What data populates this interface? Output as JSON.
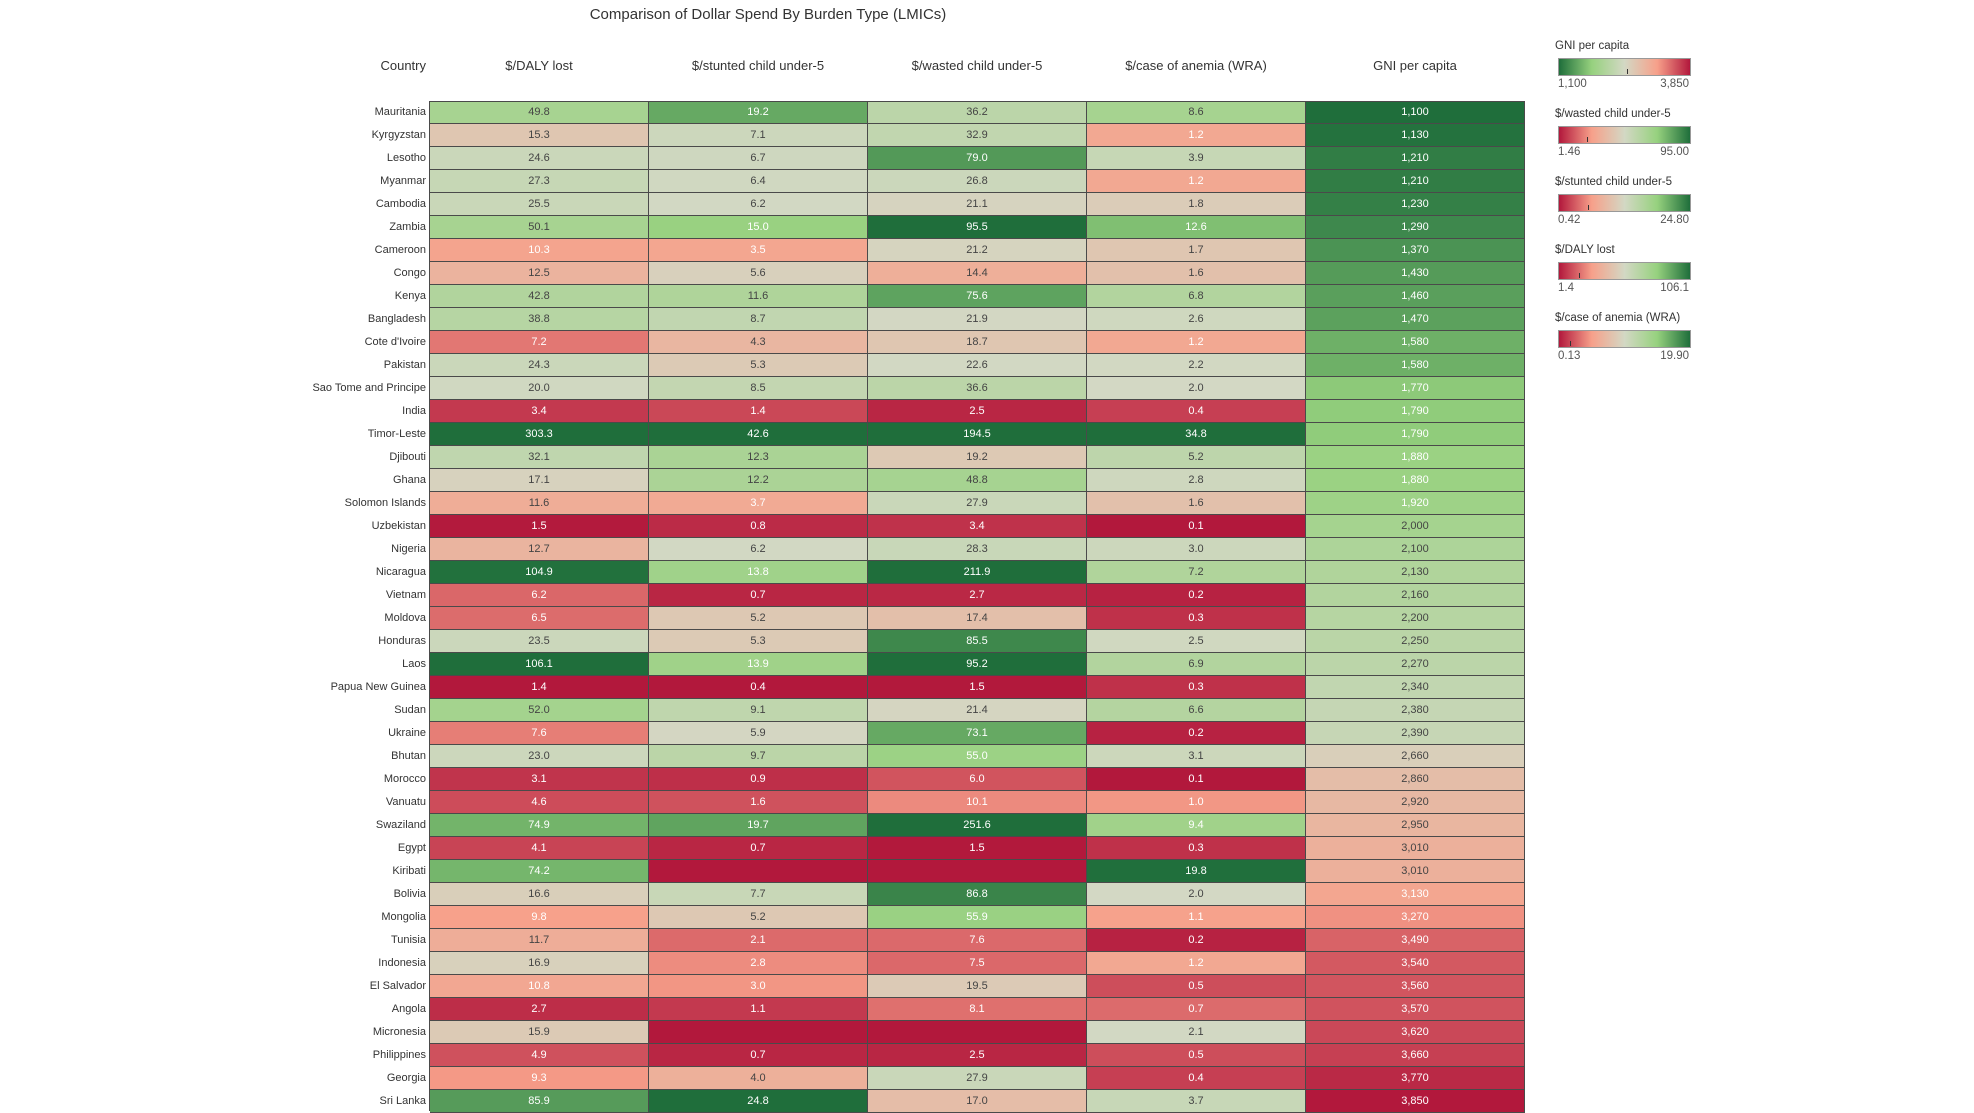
{
  "chart_data": {
    "type": "heatmap",
    "title": "Comparison of Dollar Spend By Burden Type (LMICs)",
    "row_header": "Country",
    "columns": [
      "$/DALY lost",
      "$/stunted child under-5",
      "$/wasted child under-5",
      "$/case of anemia (WRA)",
      "GNI per capita"
    ],
    "rows": [
      {
        "country": "Mauritania",
        "values": [
          "49.8",
          "19.2",
          "36.2",
          "8.6",
          "1,100"
        ]
      },
      {
        "country": "Kyrgyzstan",
        "values": [
          "15.3",
          "7.1",
          "32.9",
          "1.2",
          "1,130"
        ]
      },
      {
        "country": "Lesotho",
        "values": [
          "24.6",
          "6.7",
          "79.0",
          "3.9",
          "1,210"
        ]
      },
      {
        "country": "Myanmar",
        "values": [
          "27.3",
          "6.4",
          "26.8",
          "1.2",
          "1,210"
        ]
      },
      {
        "country": "Cambodia",
        "values": [
          "25.5",
          "6.2",
          "21.1",
          "1.8",
          "1,230"
        ]
      },
      {
        "country": "Zambia",
        "values": [
          "50.1",
          "15.0",
          "95.5",
          "12.6",
          "1,290"
        ]
      },
      {
        "country": "Cameroon",
        "values": [
          "10.3",
          "3.5",
          "21.2",
          "1.7",
          "1,370"
        ]
      },
      {
        "country": "Congo",
        "values": [
          "12.5",
          "5.6",
          "14.4",
          "1.6",
          "1,430"
        ]
      },
      {
        "country": "Kenya",
        "values": [
          "42.8",
          "11.6",
          "75.6",
          "6.8",
          "1,460"
        ]
      },
      {
        "country": "Bangladesh",
        "values": [
          "38.8",
          "8.7",
          "21.9",
          "2.6",
          "1,470"
        ]
      },
      {
        "country": "Cote d'Ivoire",
        "values": [
          "7.2",
          "4.3",
          "18.7",
          "1.2",
          "1,580"
        ]
      },
      {
        "country": "Pakistan",
        "values": [
          "24.3",
          "5.3",
          "22.6",
          "2.2",
          "1,580"
        ]
      },
      {
        "country": "Sao Tome and Principe",
        "values": [
          "20.0",
          "8.5",
          "36.6",
          "2.0",
          "1,770"
        ]
      },
      {
        "country": "India",
        "values": [
          "3.4",
          "1.4",
          "2.5",
          "0.4",
          "1,790"
        ]
      },
      {
        "country": "Timor-Leste",
        "values": [
          "303.3",
          "42.6",
          "194.5",
          "34.8",
          "1,790"
        ]
      },
      {
        "country": "Djibouti",
        "values": [
          "32.1",
          "12.3",
          "19.2",
          "5.2",
          "1,880"
        ]
      },
      {
        "country": "Ghana",
        "values": [
          "17.1",
          "12.2",
          "48.8",
          "2.8",
          "1,880"
        ]
      },
      {
        "country": "Solomon Islands",
        "values": [
          "11.6",
          "3.7",
          "27.9",
          "1.6",
          "1,920"
        ]
      },
      {
        "country": "Uzbekistan",
        "values": [
          "1.5",
          "0.8",
          "3.4",
          "0.1",
          "2,000"
        ]
      },
      {
        "country": "Nigeria",
        "values": [
          "12.7",
          "6.2",
          "28.3",
          "3.0",
          "2,100"
        ]
      },
      {
        "country": "Nicaragua",
        "values": [
          "104.9",
          "13.8",
          "211.9",
          "7.2",
          "2,130"
        ]
      },
      {
        "country": "Vietnam",
        "values": [
          "6.2",
          "0.7",
          "2.7",
          "0.2",
          "2,160"
        ]
      },
      {
        "country": "Moldova",
        "values": [
          "6.5",
          "5.2",
          "17.4",
          "0.3",
          "2,200"
        ]
      },
      {
        "country": "Honduras",
        "values": [
          "23.5",
          "5.3",
          "85.5",
          "2.5",
          "2,250"
        ]
      },
      {
        "country": "Laos",
        "values": [
          "106.1",
          "13.9",
          "95.2",
          "6.9",
          "2,270"
        ]
      },
      {
        "country": "Papua New Guinea",
        "values": [
          "1.4",
          "0.4",
          "1.5",
          "0.3",
          "2,340"
        ]
      },
      {
        "country": "Sudan",
        "values": [
          "52.0",
          "9.1",
          "21.4",
          "6.6",
          "2,380"
        ]
      },
      {
        "country": "Ukraine",
        "values": [
          "7.6",
          "5.9",
          "73.1",
          "0.2",
          "2,390"
        ]
      },
      {
        "country": "Bhutan",
        "values": [
          "23.0",
          "9.7",
          "55.0",
          "3.1",
          "2,660"
        ]
      },
      {
        "country": "Morocco",
        "values": [
          "3.1",
          "0.9",
          "6.0",
          "0.1",
          "2,860"
        ]
      },
      {
        "country": "Vanuatu",
        "values": [
          "4.6",
          "1.6",
          "10.1",
          "1.0",
          "2,920"
        ]
      },
      {
        "country": "Swaziland",
        "values": [
          "74.9",
          "19.7",
          "251.6",
          "9.4",
          "2,950"
        ]
      },
      {
        "country": "Egypt",
        "values": [
          "4.1",
          "0.7",
          "1.5",
          "0.3",
          "3,010"
        ]
      },
      {
        "country": "Kiribati",
        "values": [
          "74.2",
          "",
          "",
          "19.8",
          "3,010"
        ]
      },
      {
        "country": "Bolivia",
        "values": [
          "16.6",
          "7.7",
          "86.8",
          "2.0",
          "3,130"
        ]
      },
      {
        "country": "Mongolia",
        "values": [
          "9.8",
          "5.2",
          "55.9",
          "1.1",
          "3,270"
        ]
      },
      {
        "country": "Tunisia",
        "values": [
          "11.7",
          "2.1",
          "7.6",
          "0.2",
          "3,490"
        ]
      },
      {
        "country": "Indonesia",
        "values": [
          "16.9",
          "2.8",
          "7.5",
          "1.2",
          "3,540"
        ]
      },
      {
        "country": "El Salvador",
        "values": [
          "10.8",
          "3.0",
          "19.5",
          "0.5",
          "3,560"
        ]
      },
      {
        "country": "Angola",
        "values": [
          "2.7",
          "1.1",
          "8.1",
          "0.7",
          "3,570"
        ]
      },
      {
        "country": "Micronesia",
        "values": [
          "15.9",
          "",
          "",
          "2.1",
          "3,620"
        ]
      },
      {
        "country": "Philippines",
        "values": [
          "4.9",
          "0.7",
          "2.5",
          "0.5",
          "3,660"
        ]
      },
      {
        "country": "Georgia",
        "values": [
          "9.3",
          "4.0",
          "27.9",
          "0.4",
          "3,770"
        ]
      },
      {
        "country": "Sri Lanka",
        "values": [
          "85.9",
          "24.8",
          "17.0",
          "3.7",
          "3,850"
        ]
      }
    ],
    "legends": [
      {
        "title": "GNI per capita",
        "min": "1,100",
        "max": "3,850",
        "reversed": true,
        "column": 4,
        "lo": 1100,
        "hi": 3850,
        "mid": 2550
      },
      {
        "title": "$/wasted child under-5",
        "min": "1.46",
        "max": "95.00",
        "reversed": false,
        "column": 2,
        "lo": 1.46,
        "hi": 95.0,
        "mid": 22
      },
      {
        "title": "$/stunted child under-5",
        "min": "0.42",
        "max": "24.80",
        "reversed": false,
        "column": 1,
        "lo": 0.42,
        "hi": 24.8,
        "mid": 6
      },
      {
        "title": "$/DALY lost",
        "min": "1.4",
        "max": "106.1",
        "reversed": false,
        "column": 0,
        "lo": 1.4,
        "hi": 106.1,
        "mid": 18
      },
      {
        "title": "$/case of anemia (WRA)",
        "min": "0.13",
        "max": "19.90",
        "reversed": false,
        "column": 3,
        "lo": 0.13,
        "hi": 19.9,
        "mid": 2
      }
    ],
    "colors": {
      "low": "#b2183c",
      "mid_low": "#f7a08a",
      "mid": "#d3d8c4",
      "mid_high": "#96d17e",
      "high": "#1f6e3b"
    }
  }
}
